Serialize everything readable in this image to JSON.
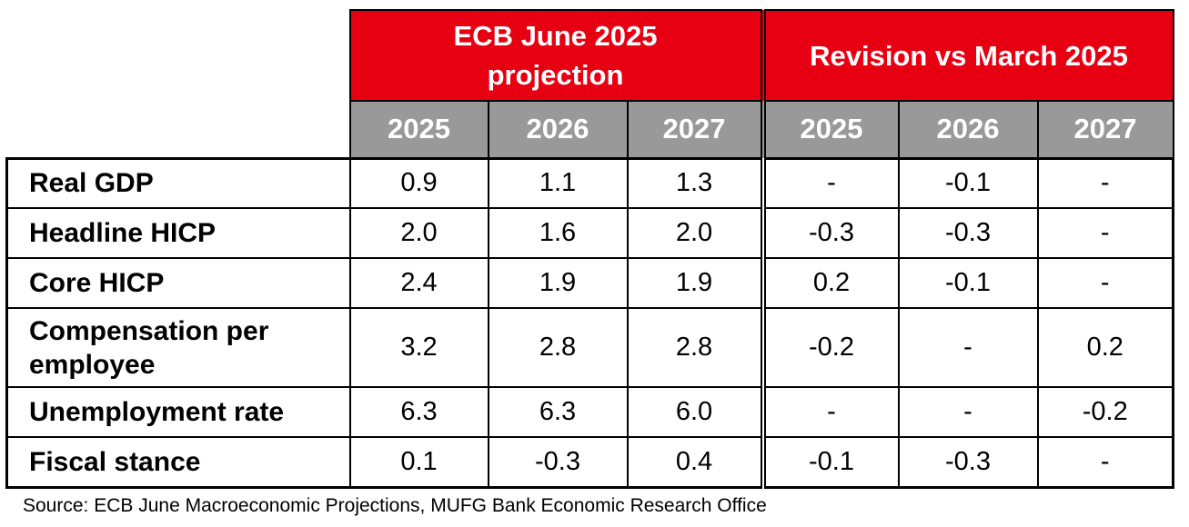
{
  "chart_data": {
    "type": "table",
    "column_groups": [
      "ECB June 2025 projection",
      "Revision vs March 2025"
    ],
    "columns": [
      "2025",
      "2026",
      "2027",
      "2025",
      "2026",
      "2027"
    ],
    "rows": [
      {
        "label": "Real GDP",
        "values": [
          "0.9",
          "1.1",
          "1.3",
          "-",
          "-0.1",
          "-"
        ]
      },
      {
        "label": "Headline HICP",
        "values": [
          "2.0",
          "1.6",
          "2.0",
          "-0.3",
          "-0.3",
          "-"
        ]
      },
      {
        "label": "Core HICP",
        "values": [
          "2.4",
          "1.9",
          "1.9",
          "0.2",
          "-0.1",
          "-"
        ]
      },
      {
        "label": "Compensation per employee",
        "values": [
          "3.2",
          "2.8",
          "2.8",
          "-0.2",
          "-",
          "0.2"
        ]
      },
      {
        "label": "Unemployment rate",
        "values": [
          "6.3",
          "6.3",
          "6.0",
          "-",
          "-",
          "-0.2"
        ]
      },
      {
        "label": "Fiscal stance",
        "values": [
          "0.1",
          "-0.3",
          "0.4",
          "-0.1",
          "-0.3",
          "-"
        ]
      }
    ],
    "source": "Source: ECB June Macroeconomic Projections, MUFG Bank Economic Research Office"
  },
  "colors": {
    "header_red": "#e60012",
    "year_gray": "#999999",
    "border_black": "#000000"
  }
}
